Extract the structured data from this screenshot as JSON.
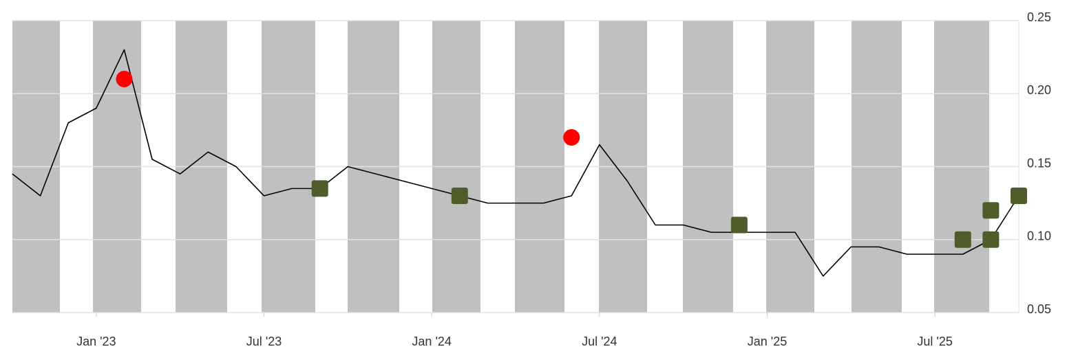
{
  "chart_data": {
    "type": "line",
    "x": [
      "2022-10",
      "2022-11",
      "2022-12",
      "2023-01",
      "2023-02",
      "2023-03",
      "2023-04",
      "2023-05",
      "2023-06",
      "2023-07",
      "2023-08",
      "2023-09",
      "2023-10",
      "2023-11",
      "2023-12",
      "2024-01",
      "2024-02",
      "2024-03",
      "2024-04",
      "2024-05",
      "2024-06",
      "2024-07",
      "2024-08",
      "2024-09",
      "2024-10",
      "2024-11",
      "2024-12",
      "2025-01",
      "2025-02",
      "2025-03",
      "2025-04",
      "2025-05",
      "2025-06",
      "2025-07",
      "2025-08",
      "2025-09",
      "2025-10"
    ],
    "values": [
      0.145,
      0.13,
      0.18,
      0.19,
      0.23,
      0.155,
      0.145,
      0.16,
      0.15,
      0.13,
      0.135,
      0.135,
      0.15,
      0.145,
      0.14,
      0.135,
      0.13,
      0.125,
      0.125,
      0.125,
      0.13,
      0.165,
      0.14,
      0.11,
      0.11,
      0.105,
      0.105,
      0.105,
      0.105,
      0.075,
      0.095,
      0.095,
      0.09,
      0.09,
      0.09,
      0.1,
      0.13
    ],
    "color": "#000000",
    "markers": [
      {
        "shape": "circle",
        "color": "#ff0000",
        "x": [
          "2023-02",
          "2024-06"
        ],
        "values": [
          0.21,
          0.17
        ]
      },
      {
        "shape": "square",
        "color": "#4e5d2a",
        "x": [
          "2023-09",
          "2024-02",
          "2024-12",
          "2025-08",
          "2025-09",
          "2025-09",
          "2025-10"
        ],
        "values": [
          0.135,
          0.13,
          0.11,
          0.1,
          0.1,
          0.12,
          0.13
        ]
      }
    ],
    "xlim": [
      "2022-10",
      "2025-10"
    ],
    "xticks": [
      {
        "value": "2023-01",
        "label": "Jan '23"
      },
      {
        "value": "2023-07",
        "label": "Jul '23"
      },
      {
        "value": "2024-01",
        "label": "Jan '24"
      },
      {
        "value": "2024-07",
        "label": "Jul '24"
      },
      {
        "value": "2025-01",
        "label": "Jan '25"
      },
      {
        "value": "2025-07",
        "label": "Jul '25"
      }
    ],
    "ylim": [
      0.05,
      0.25
    ],
    "yticks": [
      0.05,
      {
        "value": 0.1,
        "label": "0.10"
      },
      0.15,
      {
        "value": 0.2,
        "label": "0.20"
      },
      0.25
    ],
    "grid": true
  }
}
